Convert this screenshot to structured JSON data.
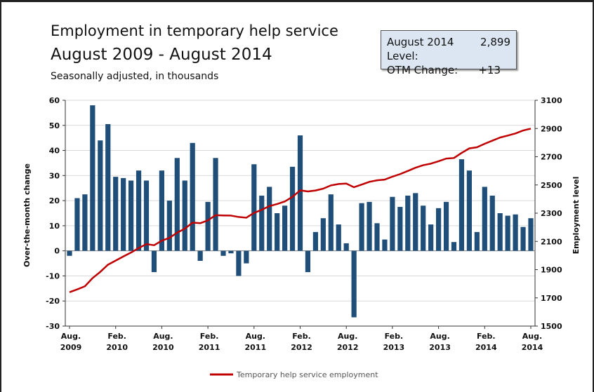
{
  "chart_data": {
    "type": "bar_line",
    "title": "Employment in temporary help service",
    "subtitle": "August 2009 - August 2014",
    "note": "Seasonally adjusted, in thousands",
    "info_box": [
      {
        "label": "August 2014 Level:",
        "value": "2,899"
      },
      {
        "label": "OTM Change:",
        "value": "+13"
      }
    ],
    "ylabel": "Over-the-month change",
    "y2label": "Employment level",
    "categories": [
      "Aug.\n2009",
      null,
      null,
      null,
      null,
      null,
      "Feb.\n2010",
      null,
      null,
      null,
      null,
      null,
      "Aug.\n2010",
      null,
      null,
      null,
      null,
      null,
      "Feb.\n2011",
      null,
      null,
      null,
      null,
      null,
      "Aug.\n2011",
      null,
      null,
      null,
      null,
      null,
      "Feb.\n2012",
      null,
      null,
      null,
      null,
      null,
      "Aug.\n2012",
      null,
      null,
      null,
      null,
      null,
      "Feb.\n2013",
      null,
      null,
      null,
      null,
      null,
      "Aug.\n2013",
      null,
      null,
      null,
      null,
      null,
      "Feb.\n2014",
      null,
      null,
      null,
      null,
      null,
      "Aug.\n2014"
    ],
    "series": [
      {
        "kind": "bar",
        "axis": "y",
        "color": "#1f4e79",
        "values": [
          -2,
          21,
          22.5,
          58,
          44,
          50.5,
          29.5,
          29,
          28,
          32,
          28,
          -8.5,
          32,
          20,
          37,
          28,
          43,
          -4,
          19.5,
          37,
          -2,
          -1,
          -10,
          -5,
          34.5,
          22,
          25.5,
          15,
          18,
          33.5,
          46,
          -8.5,
          7.5,
          13,
          22.5,
          10.5,
          3,
          -26.5,
          19,
          19.5,
          11,
          4.5,
          21.5,
          17.5,
          22,
          23,
          18,
          10.5,
          17,
          19.5,
          3.5,
          36.5,
          32,
          7.5,
          25.5,
          22,
          15,
          14,
          14.5,
          9.5,
          13
        ]
      },
      {
        "kind": "line",
        "axis": "y2",
        "name": "Temporary help service employment",
        "color": "#c00000",
        "values": [
          1740,
          1760,
          1782,
          1840,
          1884,
          1935,
          1964,
          1993,
          2021,
          2053,
          2081,
          2073,
          2105,
          2125,
          2162,
          2190,
          2233,
          2229,
          2249,
          2286,
          2284,
          2283,
          2273,
          2268,
          2302,
          2324,
          2350,
          2365,
          2383,
          2416,
          2462,
          2454,
          2461,
          2474,
          2497,
          2507,
          2510,
          2484,
          2503,
          2522,
          2533,
          2538,
          2559,
          2577,
          2599,
          2622,
          2640,
          2651,
          2668,
          2687,
          2691,
          2727,
          2759,
          2767,
          2792,
          2814,
          2836,
          2850,
          2865,
          2886,
          2899
        ]
      }
    ],
    "ylim": [
      -30,
      60
    ],
    "yticks": [
      -30,
      -20,
      -10,
      0,
      10,
      20,
      30,
      40,
      50,
      60
    ],
    "y2lim": [
      1500,
      3100
    ],
    "y2ticks": [
      1500,
      1700,
      1900,
      2100,
      2300,
      2500,
      2700,
      2900,
      3100
    ],
    "grid": true
  }
}
